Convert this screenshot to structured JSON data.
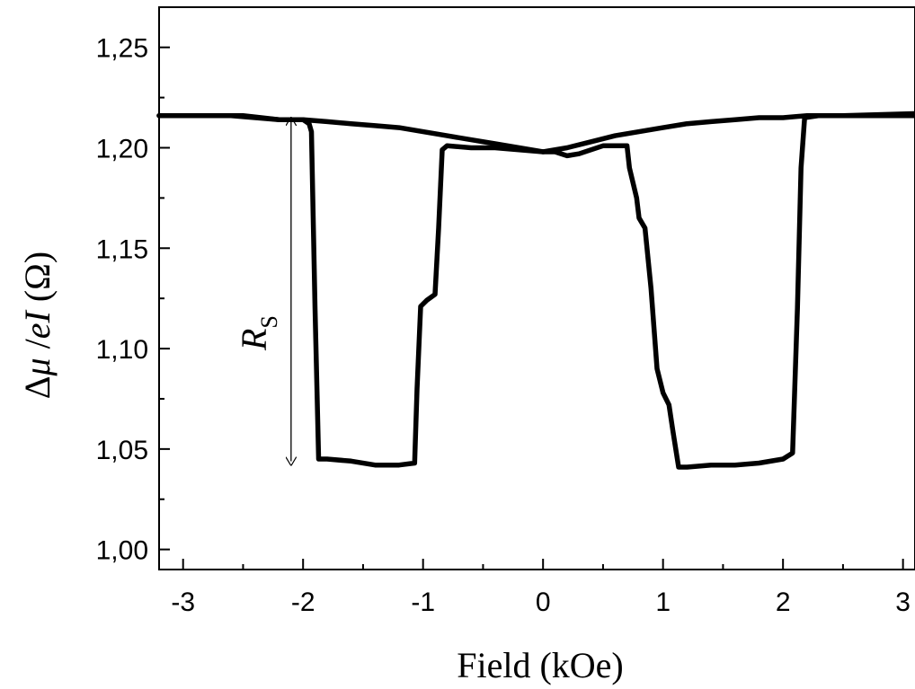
{
  "chart_data": {
    "type": "line",
    "xlabel": "Field (kOe)",
    "ylabel": {
      "prefix": "Δ",
      "mu": "μ",
      "slash": " /",
      "e": "e",
      "I": "I",
      "unit": " (Ω)"
    },
    "xlim": [
      -3.2,
      3.1
    ],
    "ylim": [
      0.99,
      1.27
    ],
    "xticks": [
      -3,
      -2,
      -1,
      0,
      1,
      2,
      3
    ],
    "xtick_labels": [
      "-3",
      "-2",
      "-1",
      "0",
      "1",
      "2",
      "3"
    ],
    "yticks": [
      1.0,
      1.05,
      1.1,
      1.15,
      1.2,
      1.25
    ],
    "ytick_labels": [
      "1,00",
      "1,05",
      "1,10",
      "1,15",
      "1,20",
      "1,25"
    ],
    "grid": false,
    "series": [
      {
        "points": [
          [
            -3.2,
            1.216
          ],
          [
            -2.5,
            1.216
          ],
          [
            -2.2,
            1.214
          ],
          [
            -2.0,
            1.214
          ],
          [
            -1.95,
            1.212
          ],
          [
            -1.93,
            1.208
          ],
          [
            -1.9,
            1.12
          ],
          [
            -1.87,
            1.045
          ],
          [
            -1.8,
            1.045
          ],
          [
            -1.6,
            1.044
          ],
          [
            -1.4,
            1.042
          ],
          [
            -1.2,
            1.042
          ],
          [
            -1.07,
            1.043
          ],
          [
            -1.05,
            1.08
          ],
          [
            -1.02,
            1.121
          ],
          [
            -0.97,
            1.124
          ],
          [
            -0.9,
            1.127
          ],
          [
            -0.87,
            1.16
          ],
          [
            -0.84,
            1.199
          ],
          [
            -0.8,
            1.201
          ],
          [
            -0.6,
            1.2
          ],
          [
            -0.4,
            1.2
          ],
          [
            -0.2,
            1.199
          ],
          [
            0.0,
            1.198
          ],
          [
            0.1,
            1.198
          ],
          [
            0.2,
            1.196
          ],
          [
            0.3,
            1.197
          ],
          [
            0.5,
            1.201
          ],
          [
            0.7,
            1.201
          ],
          [
            0.72,
            1.19
          ],
          [
            0.78,
            1.175
          ],
          [
            0.8,
            1.165
          ],
          [
            0.85,
            1.16
          ],
          [
            0.9,
            1.13
          ],
          [
            0.95,
            1.09
          ],
          [
            1.0,
            1.078
          ],
          [
            1.05,
            1.072
          ],
          [
            1.08,
            1.06
          ],
          [
            1.13,
            1.041
          ],
          [
            1.2,
            1.041
          ],
          [
            1.4,
            1.042
          ],
          [
            1.6,
            1.042
          ],
          [
            1.8,
            1.043
          ],
          [
            2.0,
            1.045
          ],
          [
            2.08,
            1.048
          ],
          [
            2.12,
            1.12
          ],
          [
            2.15,
            1.19
          ],
          [
            2.18,
            1.215
          ],
          [
            2.3,
            1.216
          ],
          [
            2.6,
            1.216
          ],
          [
            3.1,
            1.216
          ]
        ]
      },
      {
        "points": [
          [
            -3.2,
            1.216
          ],
          [
            -2.6,
            1.216
          ],
          [
            -2.4,
            1.215
          ],
          [
            -2.2,
            1.214
          ],
          [
            -2.0,
            1.214
          ],
          [
            -1.8,
            1.213
          ],
          [
            -1.6,
            1.212
          ],
          [
            -1.4,
            1.211
          ],
          [
            -1.2,
            1.21
          ],
          [
            -1.0,
            1.208
          ],
          [
            -0.8,
            1.206
          ],
          [
            -0.6,
            1.204
          ],
          [
            -0.4,
            1.202
          ],
          [
            -0.2,
            1.2
          ],
          [
            0.0,
            1.198
          ],
          [
            0.2,
            1.2
          ],
          [
            0.4,
            1.203
          ],
          [
            0.6,
            1.206
          ],
          [
            0.8,
            1.208
          ],
          [
            1.0,
            1.21
          ],
          [
            1.2,
            1.212
          ],
          [
            1.4,
            1.213
          ],
          [
            1.6,
            1.214
          ],
          [
            1.8,
            1.215
          ],
          [
            2.0,
            1.215
          ],
          [
            2.2,
            1.216
          ],
          [
            2.5,
            1.216
          ],
          [
            3.1,
            1.217
          ]
        ]
      }
    ],
    "annotation": {
      "symbol": "R",
      "subscript": "S",
      "arrow_x": -2.1,
      "arrow_from": 1.214,
      "arrow_to": 1.043
    }
  }
}
